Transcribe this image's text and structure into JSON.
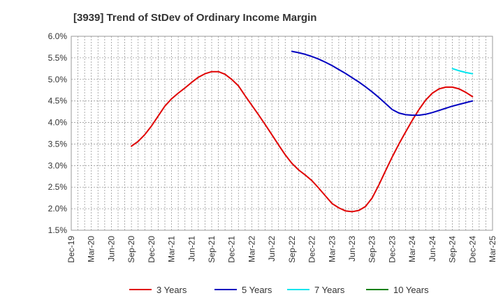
{
  "chart_data": {
    "type": "line",
    "title": "[3939]  Trend of StDev of Ordinary Income Margin",
    "xlabel": "",
    "ylabel": "",
    "x_tick_labels": [
      "Dec-19",
      "Mar-20",
      "Jun-20",
      "Sep-20",
      "Dec-20",
      "Mar-21",
      "Jun-21",
      "Sep-21",
      "Dec-21",
      "Mar-22",
      "Jun-22",
      "Sep-22",
      "Dec-22",
      "Mar-23",
      "Jun-23",
      "Sep-23",
      "Dec-23",
      "Mar-24",
      "Jun-24",
      "Sep-24",
      "Dec-24",
      "Mar-25"
    ],
    "y_tick_labels": [
      "6.0%",
      "5.5%",
      "5.0%",
      "4.5%",
      "4.0%",
      "3.5%",
      "3.0%",
      "2.5%",
      "2.0%",
      "1.5%"
    ],
    "ylim": [
      1.5,
      6.0
    ],
    "grid": true,
    "legend_position": "bottom",
    "series": [
      {
        "name": "3 Years",
        "color": "#e00000",
        "points": [
          [
            "Sep-20",
            3.45
          ],
          [
            "Oct-20",
            3.56
          ],
          [
            "Nov-20",
            3.72
          ],
          [
            "Dec-20",
            3.92
          ],
          [
            "Jan-21",
            4.15
          ],
          [
            "Feb-21",
            4.38
          ],
          [
            "Mar-21",
            4.55
          ],
          [
            "Apr-21",
            4.68
          ],
          [
            "May-21",
            4.8
          ],
          [
            "Jun-21",
            4.93
          ],
          [
            "Jul-21",
            5.05
          ],
          [
            "Aug-21",
            5.13
          ],
          [
            "Sep-21",
            5.18
          ],
          [
            "Oct-21",
            5.18
          ],
          [
            "Nov-21",
            5.12
          ],
          [
            "Dec-21",
            5.0
          ],
          [
            "Jan-22",
            4.85
          ],
          [
            "Feb-22",
            4.62
          ],
          [
            "Mar-22",
            4.4
          ],
          [
            "Apr-22",
            4.18
          ],
          [
            "May-22",
            3.95
          ],
          [
            "Jun-22",
            3.72
          ],
          [
            "Jul-22",
            3.48
          ],
          [
            "Aug-22",
            3.25
          ],
          [
            "Sep-22",
            3.05
          ],
          [
            "Oct-22",
            2.9
          ],
          [
            "Nov-22",
            2.78
          ],
          [
            "Dec-22",
            2.65
          ],
          [
            "Jan-23",
            2.48
          ],
          [
            "Feb-23",
            2.3
          ],
          [
            "Mar-23",
            2.12
          ],
          [
            "Apr-23",
            2.02
          ],
          [
            "May-23",
            1.95
          ],
          [
            "Jun-23",
            1.93
          ],
          [
            "Jul-23",
            1.96
          ],
          [
            "Aug-23",
            2.05
          ],
          [
            "Sep-23",
            2.25
          ],
          [
            "Oct-23",
            2.55
          ],
          [
            "Nov-23",
            2.88
          ],
          [
            "Dec-23",
            3.2
          ],
          [
            "Jan-24",
            3.5
          ],
          [
            "Feb-24",
            3.78
          ],
          [
            "Mar-24",
            4.05
          ],
          [
            "Apr-24",
            4.3
          ],
          [
            "May-24",
            4.52
          ],
          [
            "Jun-24",
            4.68
          ],
          [
            "Jul-24",
            4.78
          ],
          [
            "Aug-24",
            4.82
          ],
          [
            "Sep-24",
            4.82
          ],
          [
            "Oct-24",
            4.78
          ],
          [
            "Nov-24",
            4.7
          ],
          [
            "Dec-24",
            4.6
          ]
        ]
      },
      {
        "name": "5 Years",
        "color": "#0000c0",
        "points": [
          [
            "Sep-22",
            5.65
          ],
          [
            "Oct-22",
            5.62
          ],
          [
            "Nov-22",
            5.58
          ],
          [
            "Dec-22",
            5.53
          ],
          [
            "Jan-23",
            5.47
          ],
          [
            "Feb-23",
            5.4
          ],
          [
            "Mar-23",
            5.32
          ],
          [
            "Apr-23",
            5.23
          ],
          [
            "May-23",
            5.14
          ],
          [
            "Jun-23",
            5.04
          ],
          [
            "Jul-23",
            4.94
          ],
          [
            "Aug-23",
            4.83
          ],
          [
            "Sep-23",
            4.71
          ],
          [
            "Oct-23",
            4.58
          ],
          [
            "Nov-23",
            4.44
          ],
          [
            "Dec-23",
            4.3
          ],
          [
            "Jan-24",
            4.22
          ],
          [
            "Feb-24",
            4.18
          ],
          [
            "Mar-24",
            4.17
          ],
          [
            "Apr-24",
            4.17
          ],
          [
            "May-24",
            4.19
          ],
          [
            "Jun-24",
            4.23
          ],
          [
            "Jul-24",
            4.28
          ],
          [
            "Aug-24",
            4.33
          ],
          [
            "Sep-24",
            4.38
          ],
          [
            "Oct-24",
            4.42
          ],
          [
            "Nov-24",
            4.46
          ],
          [
            "Dec-24",
            4.5
          ]
        ]
      },
      {
        "name": "7 Years",
        "color": "#00e5ee",
        "points": [
          [
            "Sep-24",
            5.25
          ],
          [
            "Oct-24",
            5.2
          ],
          [
            "Nov-24",
            5.16
          ],
          [
            "Dec-24",
            5.13
          ]
        ]
      },
      {
        "name": "10 Years",
        "color": "#008000",
        "points": []
      }
    ]
  }
}
